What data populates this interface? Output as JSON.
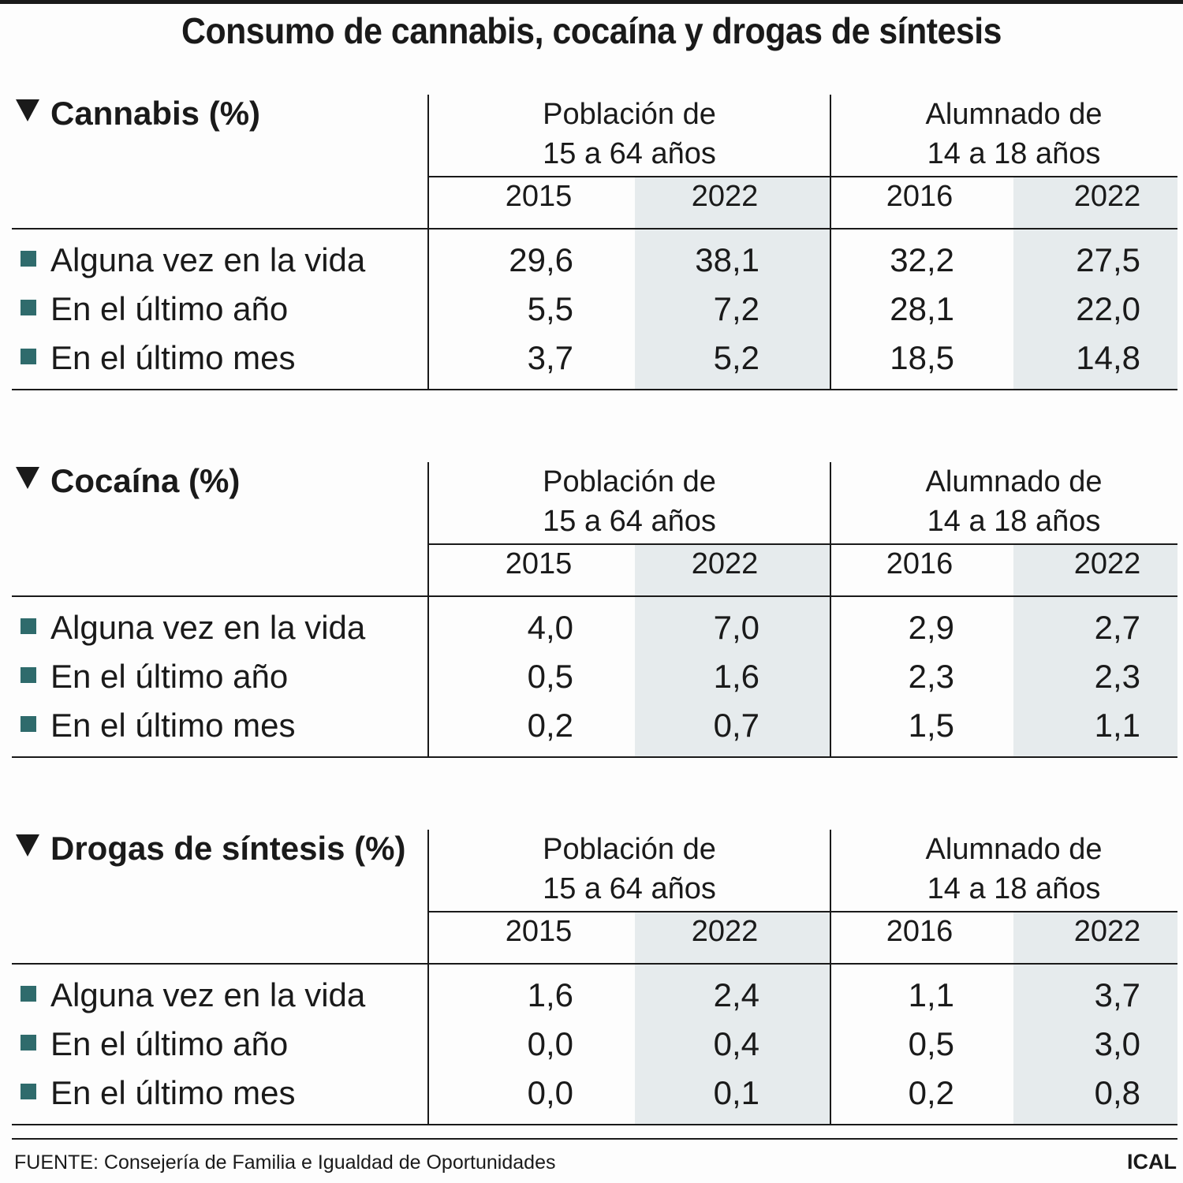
{
  "title": "Consumo de cannabis, cocaína y drogas de síntesis",
  "colors": {
    "marker": "#2f6b6c",
    "shaded_column": "#e6ebed",
    "rules": "#1a1a1a"
  },
  "chart_data": [
    {
      "type": "table",
      "title": "Cannabis (%)",
      "groups": [
        "Población de\n15 a 64 años",
        "Alumnado de\n14 a 18 años"
      ],
      "columns": [
        "2015",
        "2022",
        "2016",
        "2022"
      ],
      "rows": [
        {
          "label": "Alguna vez en la vida",
          "values": [
            "29,6",
            "38,1",
            "32,2",
            "27,5"
          ]
        },
        {
          "label": "En el último año",
          "values": [
            "5,5",
            "7,2",
            "28,1",
            "22,0"
          ]
        },
        {
          "label": "En el último mes",
          "values": [
            "3,7",
            "5,2",
            "18,5",
            "14,8"
          ]
        }
      ]
    },
    {
      "type": "table",
      "title": "Cocaína (%)",
      "groups": [
        "Población de\n15 a 64 años",
        "Alumnado de\n14 a 18 años"
      ],
      "columns": [
        "2015",
        "2022",
        "2016",
        "2022"
      ],
      "rows": [
        {
          "label": "Alguna vez en la vida",
          "values": [
            "4,0",
            "7,0",
            "2,9",
            "2,7"
          ]
        },
        {
          "label": "En el último año",
          "values": [
            "0,5",
            "1,6",
            "2,3",
            "2,3"
          ]
        },
        {
          "label": "En el último mes",
          "values": [
            "0,2",
            "0,7",
            "1,5",
            "1,1"
          ]
        }
      ]
    },
    {
      "type": "table",
      "title": "Drogas de síntesis (%)",
      "groups": [
        "Población de\n15 a 64 años",
        "Alumnado de\n14 a 18 años"
      ],
      "columns": [
        "2015",
        "2022",
        "2016",
        "2022"
      ],
      "rows": [
        {
          "label": "Alguna vez en la vida",
          "values": [
            "1,6",
            "2,4",
            "1,1",
            "3,7"
          ]
        },
        {
          "label": "En el último año",
          "values": [
            "0,0",
            "0,4",
            "0,5",
            "3,0"
          ]
        },
        {
          "label": "En el último mes",
          "values": [
            "0,0",
            "0,1",
            "0,2",
            "0,8"
          ]
        }
      ]
    }
  ],
  "footer": {
    "source": "FUENTE: Consejería de Familia e Igualdad de Oportunidades",
    "logo": "ICAL"
  }
}
